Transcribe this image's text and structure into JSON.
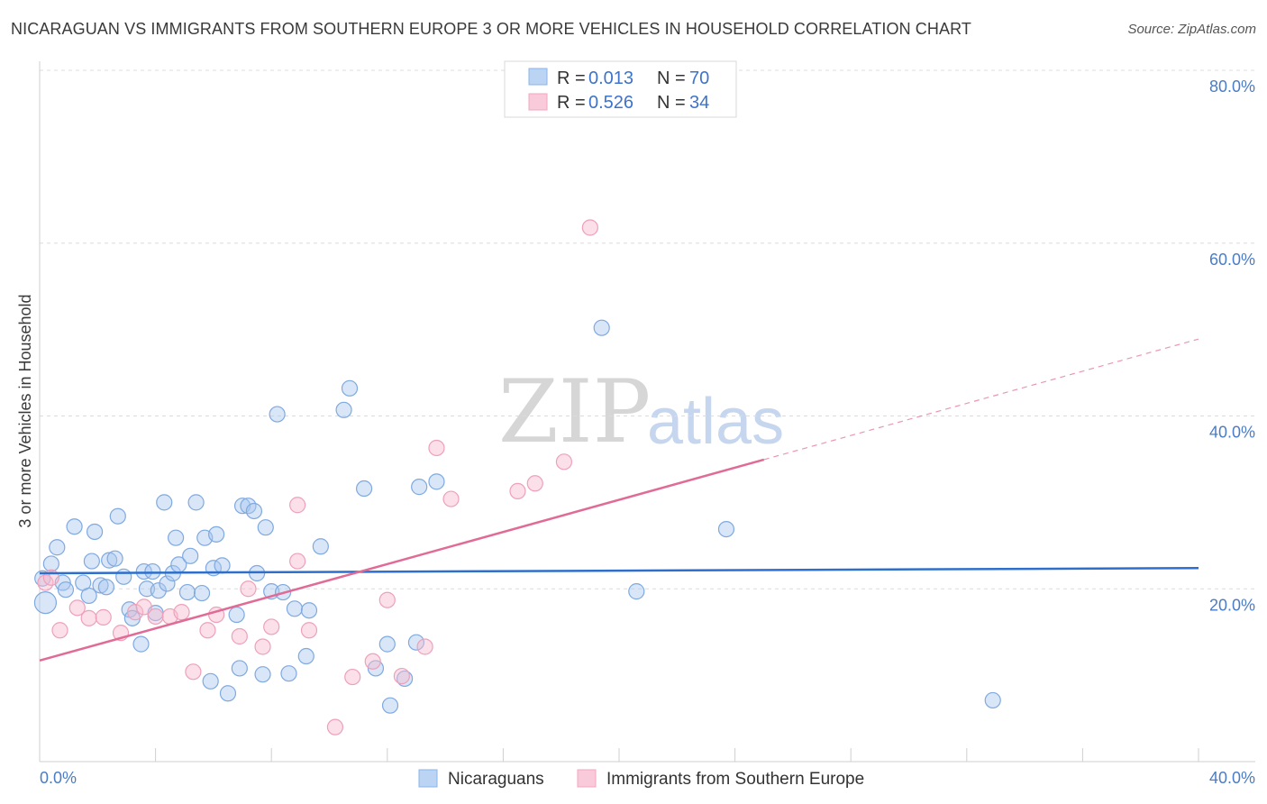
{
  "title": "NICARAGUAN VS IMMIGRANTS FROM SOUTHERN EUROPE 3 OR MORE VEHICLES IN HOUSEHOLD CORRELATION CHART",
  "source": "Source: ZipAtlas.com",
  "watermark": {
    "zip": "ZIP",
    "atlas": "atlas"
  },
  "legend_top": [
    {
      "r_label": "R =",
      "r_value": "0.013",
      "n_label": "N =",
      "n_value": "70"
    },
    {
      "r_label": "R =",
      "r_value": "0.526",
      "n_label": "N =",
      "n_value": "34"
    }
  ],
  "chart_data": {
    "type": "scatter",
    "title": "NICARAGUAN VS IMMIGRANTS FROM SOUTHERN EUROPE 3 OR MORE VEHICLES IN HOUSEHOLD CORRELATION CHART",
    "xlabel": "",
    "ylabel": "3 or more Vehicles in Household",
    "xlim": [
      0,
      40
    ],
    "ylim": [
      0,
      80
    ],
    "x_tick_labels": [
      "0.0%",
      "40.0%"
    ],
    "y_ticks": [
      20,
      40,
      60,
      80
    ],
    "y_tick_labels": [
      "20.0%",
      "40.0%",
      "60.0%",
      "80.0%"
    ],
    "grid": true,
    "legend_position": "top-center",
    "colors": {
      "nicaraguans": "#8ab4e8",
      "southern_europe": "#f2a7bf",
      "nicaraguans_line": "#2f6fcc",
      "southern_europe_line": "#e06b96"
    },
    "series": [
      {
        "name": "Nicaraguans",
        "r": 0.013,
        "n": 70,
        "trend": {
          "x": [
            0,
            40
          ],
          "y": [
            21.8,
            22.4
          ],
          "dashed_after": null
        },
        "points": [
          [
            0.2,
            18.4
          ],
          [
            0.4,
            22.9
          ],
          [
            0.6,
            24.8
          ],
          [
            0.8,
            20.7
          ],
          [
            0.9,
            19.9
          ],
          [
            1.2,
            27.2
          ],
          [
            1.5,
            20.7
          ],
          [
            1.7,
            19.2
          ],
          [
            1.8,
            23.2
          ],
          [
            1.9,
            26.6
          ],
          [
            2.1,
            20.4
          ],
          [
            2.3,
            20.2
          ],
          [
            2.4,
            23.3
          ],
          [
            2.6,
            23.5
          ],
          [
            2.7,
            28.4
          ],
          [
            2.9,
            21.4
          ],
          [
            3.1,
            17.6
          ],
          [
            3.2,
            16.6
          ],
          [
            3.5,
            13.6
          ],
          [
            3.6,
            22.0
          ],
          [
            3.7,
            20.0
          ],
          [
            3.9,
            22.0
          ],
          [
            4.1,
            19.8
          ],
          [
            4.4,
            20.6
          ],
          [
            4.3,
            30.0
          ],
          [
            4.6,
            21.8
          ],
          [
            4.7,
            25.9
          ],
          [
            4.8,
            22.8
          ],
          [
            5.1,
            19.6
          ],
          [
            5.2,
            23.8
          ],
          [
            5.4,
            30.0
          ],
          [
            5.6,
            19.5
          ],
          [
            5.7,
            25.9
          ],
          [
            5.9,
            9.3
          ],
          [
            6.0,
            22.4
          ],
          [
            6.1,
            26.3
          ],
          [
            6.3,
            22.7
          ],
          [
            6.5,
            7.9
          ],
          [
            6.8,
            17.0
          ],
          [
            6.9,
            10.8
          ],
          [
            7.0,
            29.6
          ],
          [
            7.2,
            29.6
          ],
          [
            7.4,
            29.0
          ],
          [
            7.5,
            21.8
          ],
          [
            7.7,
            10.1
          ],
          [
            7.8,
            27.1
          ],
          [
            8.0,
            19.7
          ],
          [
            8.2,
            40.2
          ],
          [
            8.4,
            19.6
          ],
          [
            8.6,
            10.2
          ],
          [
            8.8,
            17.7
          ],
          [
            9.2,
            12.2
          ],
          [
            9.3,
            17.5
          ],
          [
            9.7,
            24.9
          ],
          [
            10.5,
            40.7
          ],
          [
            10.7,
            43.2
          ],
          [
            11.2,
            31.6
          ],
          [
            11.6,
            10.8
          ],
          [
            12.0,
            13.6
          ],
          [
            12.1,
            6.5
          ],
          [
            12.6,
            9.6
          ],
          [
            13.0,
            13.8
          ],
          [
            13.1,
            31.8
          ],
          [
            13.7,
            32.4
          ],
          [
            19.4,
            50.2
          ],
          [
            20.6,
            19.7
          ],
          [
            23.7,
            26.9
          ],
          [
            32.9,
            7.1
          ],
          [
            0.1,
            21.2
          ],
          [
            4.0,
            17.2
          ]
        ]
      },
      {
        "name": "Immigrants from Southern Europe",
        "r": 0.526,
        "n": 34,
        "trend": {
          "x": [
            0,
            40
          ],
          "y": [
            11.7,
            48.9
          ],
          "dashed_after": 25.0
        },
        "points": [
          [
            0.2,
            20.7
          ],
          [
            0.4,
            21.3
          ],
          [
            0.7,
            15.2
          ],
          [
            1.3,
            17.8
          ],
          [
            1.7,
            16.6
          ],
          [
            2.2,
            16.7
          ],
          [
            2.8,
            14.9
          ],
          [
            3.3,
            17.3
          ],
          [
            3.6,
            17.9
          ],
          [
            4.0,
            16.8
          ],
          [
            4.5,
            16.8
          ],
          [
            4.9,
            17.3
          ],
          [
            5.3,
            10.4
          ],
          [
            5.8,
            15.2
          ],
          [
            6.1,
            17.0
          ],
          [
            6.9,
            14.5
          ],
          [
            7.2,
            20.0
          ],
          [
            7.7,
            13.3
          ],
          [
            8.0,
            15.6
          ],
          [
            8.9,
            29.7
          ],
          [
            8.9,
            23.2
          ],
          [
            9.3,
            15.2
          ],
          [
            10.2,
            4.0
          ],
          [
            10.8,
            9.8
          ],
          [
            11.5,
            11.6
          ],
          [
            12.0,
            18.7
          ],
          [
            12.5,
            9.9
          ],
          [
            13.3,
            13.3
          ],
          [
            13.7,
            36.3
          ],
          [
            14.2,
            30.4
          ],
          [
            16.5,
            31.3
          ],
          [
            17.1,
            32.2
          ],
          [
            18.1,
            34.7
          ],
          [
            19.0,
            61.8
          ]
        ]
      }
    ],
    "bottom_legend": [
      "Nicaraguans",
      "Immigrants from Southern Europe"
    ]
  }
}
